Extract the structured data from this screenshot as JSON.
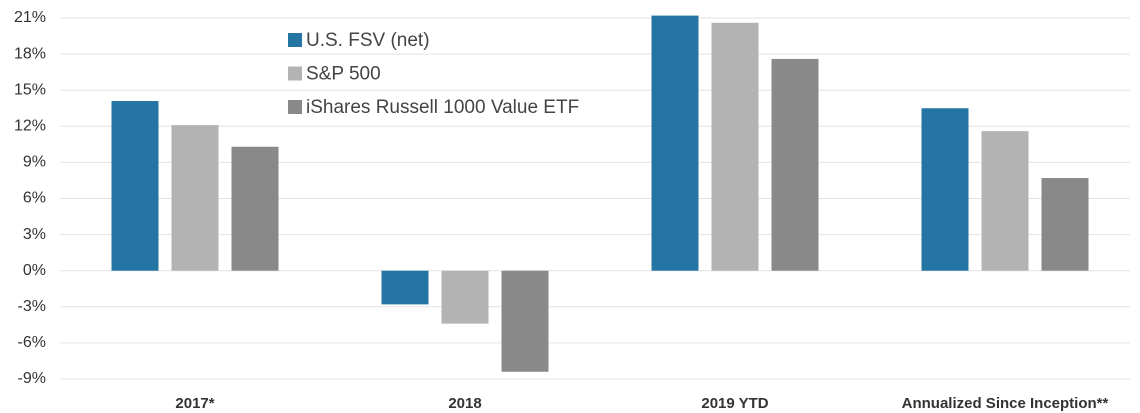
{
  "chart_data": {
    "type": "bar",
    "categories": [
      "2017*",
      "2018",
      "2019 YTD",
      "Annualized Since Inception**"
    ],
    "series": [
      {
        "name": "U.S. FSV (net)",
        "color": "#2474a4",
        "values": [
          14.1,
          -2.8,
          21.2,
          13.5
        ]
      },
      {
        "name": "S&P 500",
        "color": "#b3b3b3",
        "values": [
          12.1,
          -4.4,
          20.6,
          11.6
        ]
      },
      {
        "name": "iShares Russell 1000 Value ETF",
        "color": "#898989",
        "values": [
          10.3,
          -8.4,
          17.6,
          7.7
        ]
      }
    ],
    "ylim": [
      -9,
      21
    ],
    "yticks": [
      {
        "value": -9,
        "label": "-9%"
      },
      {
        "value": -6,
        "label": "-6%"
      },
      {
        "value": -3,
        "label": "-3%"
      },
      {
        "value": 0,
        "label": "0%"
      },
      {
        "value": 3,
        "label": "3%"
      },
      {
        "value": 6,
        "label": "6%"
      },
      {
        "value": 9,
        "label": "9%"
      },
      {
        "value": 12,
        "label": "12%"
      },
      {
        "value": 15,
        "label": "15%"
      },
      {
        "value": 18,
        "label": "18%"
      },
      {
        "value": 21,
        "label": "21%"
      }
    ],
    "grid": true,
    "legend": "top-left"
  }
}
